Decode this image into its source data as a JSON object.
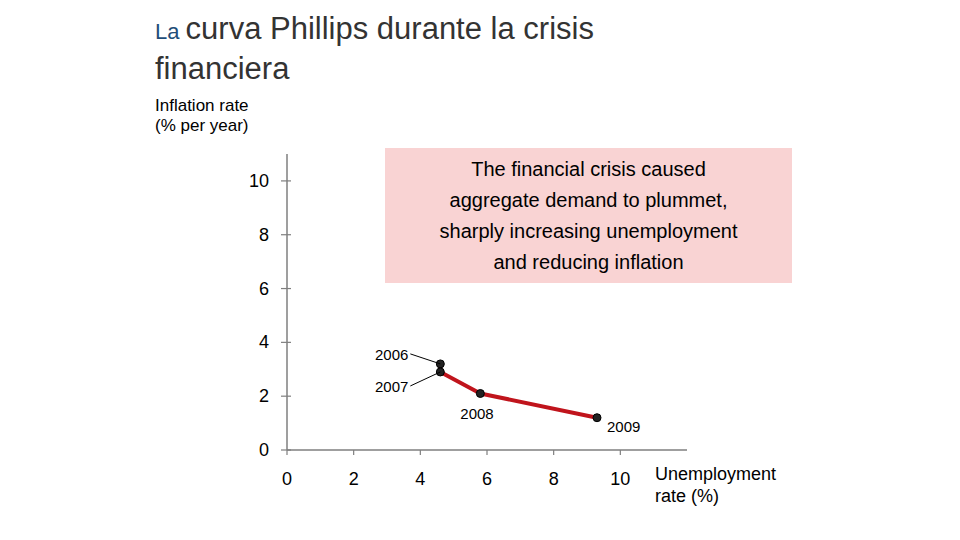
{
  "chart_data": {
    "type": "line",
    "title": "La curva Phillips durante la crisis financiera",
    "x_label": "Unemployment\nrate (%)",
    "y_label": "Inflation rate\n(% per year)",
    "annotation": "The financial crisis caused\naggregate demand to plummet,\nsharply increasing unemployment\nand reducing inflation",
    "x": [
      4.6,
      4.6,
      5.8,
      9.3
    ],
    "values": [
      3.2,
      2.9,
      2.1,
      1.2
    ],
    "point_labels": [
      "2006",
      "2007",
      "2008",
      "2009"
    ],
    "color": "#c0141c",
    "marker": "circle",
    "xlim": [
      0,
      12
    ],
    "ylim": [
      0,
      11
    ],
    "xticks": [
      0,
      2,
      4,
      6,
      8,
      10
    ],
    "yticks": [
      0,
      2,
      4,
      6,
      8,
      10
    ],
    "grid": false
  }
}
